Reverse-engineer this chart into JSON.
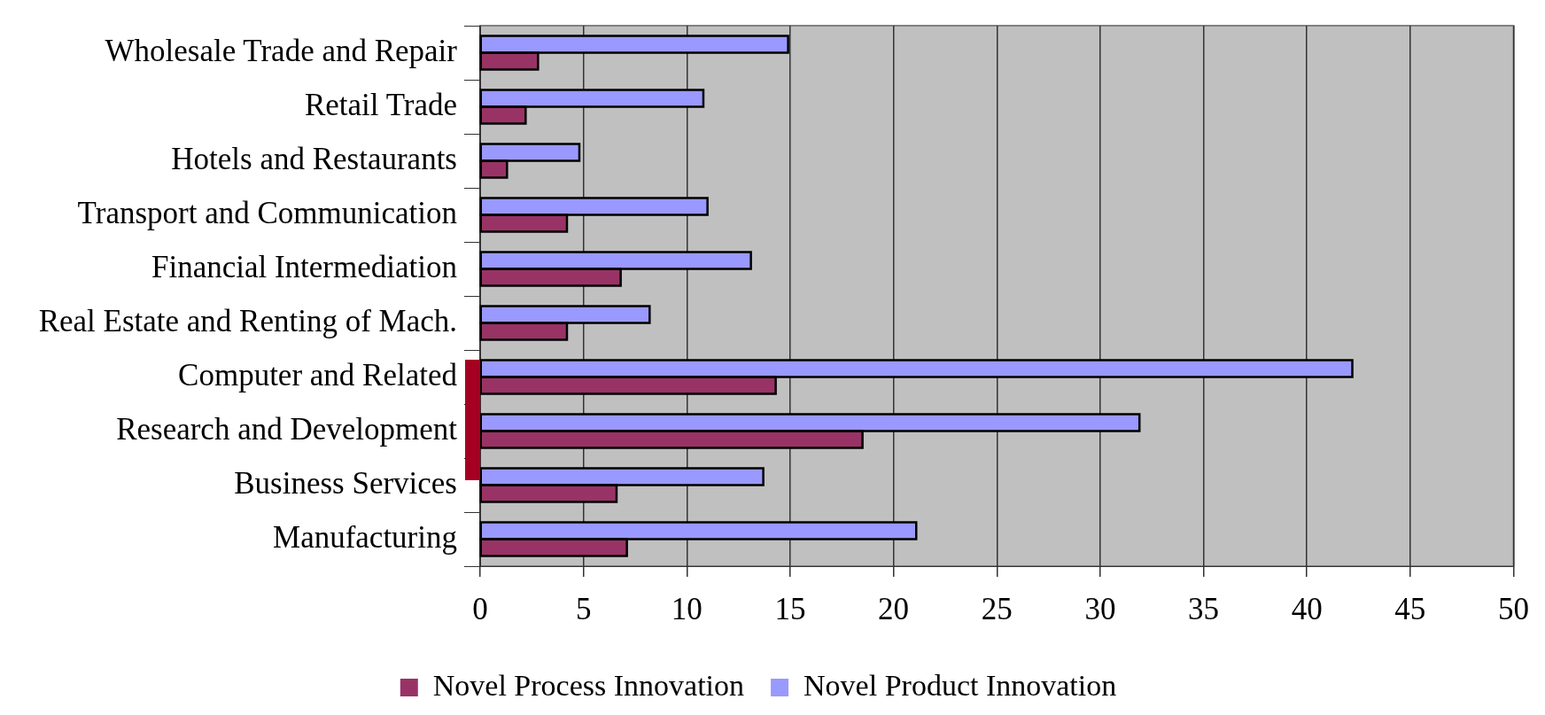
{
  "chart_data": {
    "type": "bar",
    "orientation": "horizontal",
    "categories": [
      "Wholesale Trade and Repair",
      "Retail Trade",
      "Hotels and Restaurants",
      "Transport and Communication",
      "Financial Intermediation",
      "Real Estate and Renting of Mach.",
      "Computer and Related",
      "Research and Development",
      "Business Services",
      "Manufacturing"
    ],
    "series": [
      {
        "name": "Novel Process Innovation",
        "color": "#993366",
        "values": [
          2.8,
          2.2,
          1.3,
          4.2,
          6.8,
          4.2,
          14.3,
          18.5,
          6.6,
          7.1
        ]
      },
      {
        "name": "Novel Product Innovation",
        "color": "#9999ff",
        "values": [
          14.9,
          10.8,
          4.8,
          11.0,
          13.1,
          8.2,
          42.2,
          31.9,
          13.7,
          21.1
        ]
      }
    ],
    "xlim": [
      0,
      50
    ],
    "xticks": [
      0,
      5,
      10,
      15,
      20,
      25,
      30,
      35,
      40,
      45,
      50
    ],
    "grid": "x",
    "legend": "bottom"
  }
}
